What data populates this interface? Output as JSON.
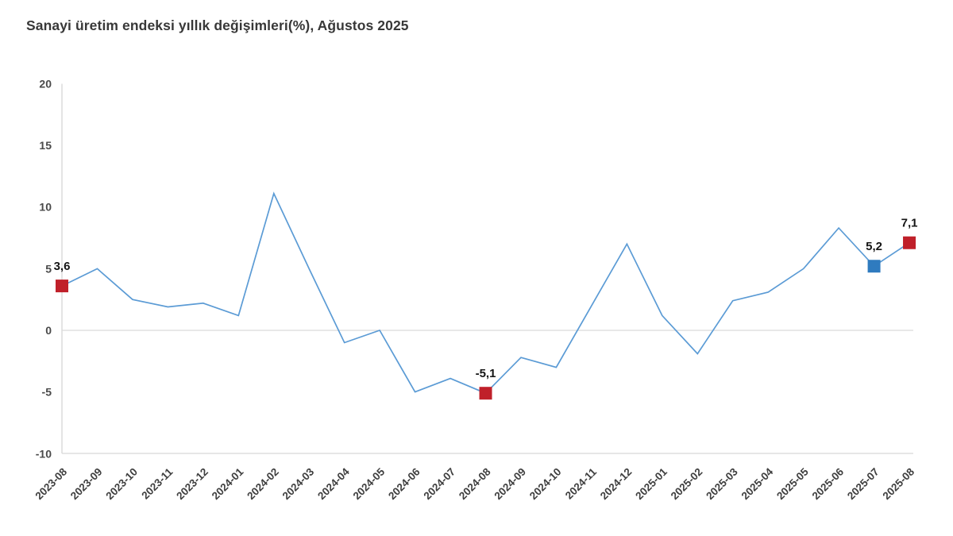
{
  "header": {
    "title": "Sanayi üretim endeksi yıllık değişimleri(%), Ağustos 2025"
  },
  "chart_data": {
    "type": "line",
    "title": "Sanayi üretim endeksi yıllık değişimleri(%), Ağustos 2025",
    "xlabel": "",
    "ylabel": "",
    "ylim": [
      -10,
      20
    ],
    "yticks": [
      {
        "value": 20,
        "label": "20"
      },
      {
        "value": 15,
        "label": "15"
      },
      {
        "value": 10,
        "label": "10"
      },
      {
        "value": 5,
        "label": "5"
      },
      {
        "value": 0,
        "label": "0"
      },
      {
        "value": -5,
        "label": "-5"
      },
      {
        "value": -10,
        "label": "-10"
      }
    ],
    "grid": "zero-baseline-only",
    "legend_position": "none",
    "categories": [
      "2023-08",
      "2023-09",
      "2023-10",
      "2023-11",
      "2023-12",
      "2024-01",
      "2024-02",
      "2024-03",
      "2024-04",
      "2024-05",
      "2024-06",
      "2024-07",
      "2024-08",
      "2024-09",
      "2024-10",
      "2024-11",
      "2024-12",
      "2025-01",
      "2025-02",
      "2025-03",
      "2025-04",
      "2025-05",
      "2025-06",
      "2025-07",
      "2025-08"
    ],
    "series": [
      {
        "name": "Sanayi üretim endeksi yıllık değişim (%)",
        "values": [
          3.6,
          5.0,
          2.5,
          1.9,
          2.2,
          1.2,
          11.1,
          5.0,
          -1.0,
          0.0,
          -5.0,
          -3.9,
          -5.1,
          -2.2,
          -3.0,
          2.0,
          7.0,
          1.2,
          -1.9,
          2.4,
          3.1,
          5.0,
          8.3,
          5.2,
          7.1
        ]
      }
    ],
    "annotated_points": [
      {
        "index": 0,
        "category": "2023-08",
        "label": "3,6",
        "value": 3.6,
        "marker_color": "#c0202a"
      },
      {
        "index": 12,
        "category": "2024-08",
        "label": "-5,1",
        "value": -5.1,
        "marker_color": "#c0202a"
      },
      {
        "index": 23,
        "category": "2025-07",
        "label": "5,2",
        "value": 5.2,
        "marker_color": "#2f7bbf"
      },
      {
        "index": 24,
        "category": "2025-08",
        "label": "7,1",
        "value": 7.1,
        "marker_color": "#c0202a"
      }
    ],
    "colors": {
      "line": "#5b9bd5",
      "marker_red": "#c0202a",
      "marker_blue": "#2f7bbf",
      "axis_line": "#d6d6d6",
      "zero_line": "#d9d9d9",
      "tick_text": "#4a4a4a",
      "title_text": "#383838",
      "data_label_text": "#141414",
      "background": "#ffffff"
    }
  }
}
